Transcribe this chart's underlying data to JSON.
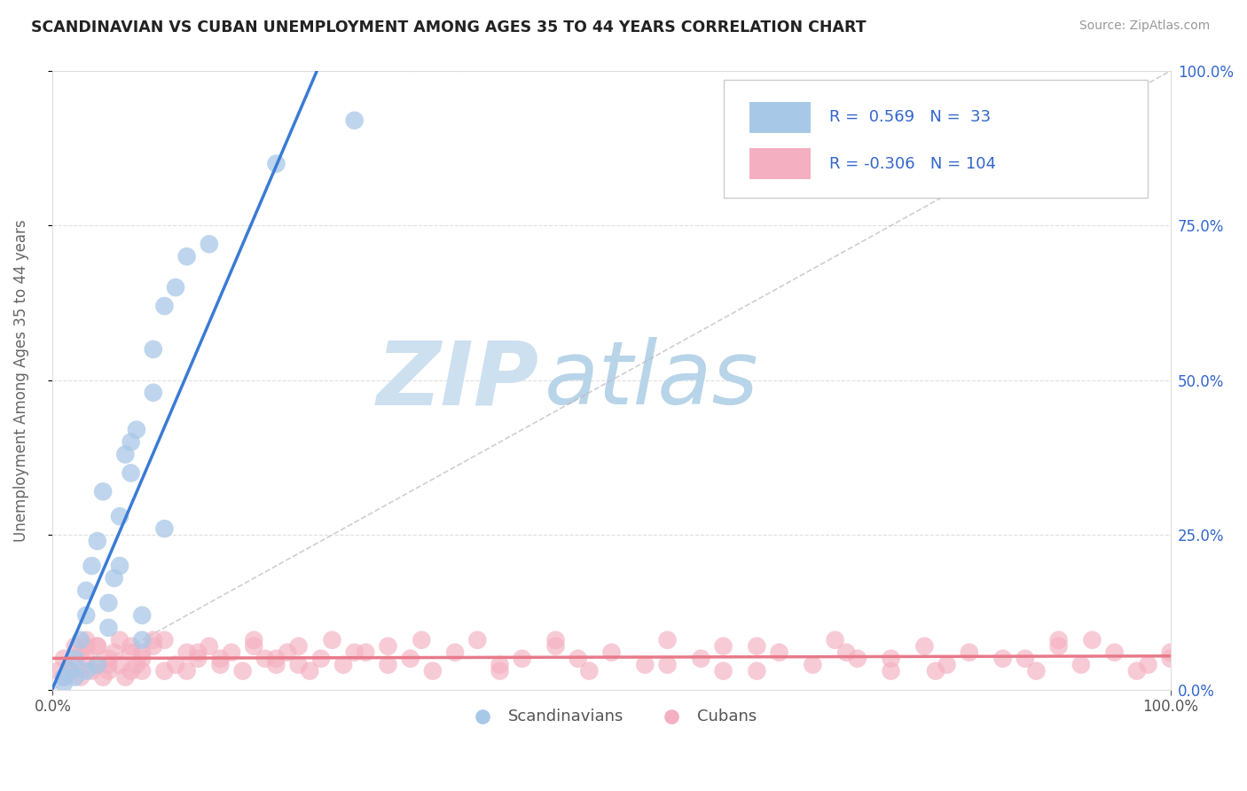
{
  "title": "SCANDINAVIAN VS CUBAN UNEMPLOYMENT AMONG AGES 35 TO 44 YEARS CORRELATION CHART",
  "source": "Source: ZipAtlas.com",
  "ylabel": "Unemployment Among Ages 35 to 44 years",
  "yticklabels": [
    "0.0%",
    "25.0%",
    "50.0%",
    "75.0%",
    "100.0%"
  ],
  "yticks": [
    0,
    25,
    50,
    75,
    100
  ],
  "xticklabels": [
    "0.0%",
    "100.0%"
  ],
  "xticks": [
    0,
    100
  ],
  "legend_label1": "Scandinavians",
  "legend_label2": "Cubans",
  "legend_r1": "0.569",
  "legend_n1": "33",
  "legend_r2": "-0.306",
  "legend_n2": "104",
  "blue_scatter_color": "#a8c8e8",
  "pink_scatter_color": "#f4b0c0",
  "blue_line_color": "#3a7bd5",
  "pink_line_color": "#e87a8a",
  "diagonal_color": "#bbbbbb",
  "grid_color": "#e0e0e0",
  "title_color": "#222222",
  "axis_label_color": "#666666",
  "tick_color": "#3366cc",
  "scandinavian_x": [
    1.0,
    1.5,
    2.0,
    2.5,
    3.0,
    3.0,
    3.5,
    4.0,
    4.5,
    5.0,
    5.5,
    6.0,
    6.5,
    7.0,
    7.5,
    8.0,
    9.0,
    10.0,
    11.0,
    12.0,
    14.0,
    1.0,
    2.0,
    3.0,
    4.0,
    5.0,
    6.0,
    7.0,
    8.0,
    9.0,
    10.0,
    20.0,
    27.0
  ],
  "scandinavian_y": [
    2.0,
    3.0,
    5.0,
    8.0,
    12.0,
    16.0,
    20.0,
    24.0,
    32.0,
    10.0,
    18.0,
    28.0,
    38.0,
    35.0,
    42.0,
    8.0,
    55.0,
    26.0,
    65.0,
    70.0,
    72.0,
    1.0,
    2.0,
    3.0,
    4.0,
    14.0,
    20.0,
    40.0,
    12.0,
    48.0,
    62.0,
    85.0,
    92.0
  ],
  "cuban_x": [
    0.5,
    1.0,
    1.0,
    1.5,
    2.0,
    2.0,
    2.5,
    2.5,
    3.0,
    3.0,
    3.5,
    4.0,
    4.0,
    4.5,
    5.0,
    5.0,
    5.5,
    6.0,
    6.0,
    6.5,
    7.0,
    7.0,
    7.5,
    8.0,
    8.0,
    9.0,
    10.0,
    10.0,
    11.0,
    12.0,
    13.0,
    14.0,
    15.0,
    16.0,
    17.0,
    18.0,
    19.0,
    20.0,
    21.0,
    22.0,
    23.0,
    24.0,
    25.0,
    26.0,
    28.0,
    30.0,
    32.0,
    34.0,
    36.0,
    38.0,
    40.0,
    42.0,
    45.0,
    48.0,
    50.0,
    53.0,
    55.0,
    58.0,
    60.0,
    63.0,
    65.0,
    68.0,
    70.0,
    72.0,
    75.0,
    78.0,
    80.0,
    82.0,
    85.0,
    88.0,
    90.0,
    92.0,
    95.0,
    97.0,
    100.0,
    3.0,
    5.0,
    7.0,
    9.0,
    12.0,
    15.0,
    18.0,
    22.0,
    27.0,
    33.0,
    40.0,
    47.0,
    55.0,
    63.0,
    71.0,
    79.0,
    87.0,
    93.0,
    98.0,
    4.0,
    8.0,
    13.0,
    20.0,
    30.0,
    45.0,
    60.0,
    75.0,
    90.0,
    100.0
  ],
  "cuban_y": [
    3.0,
    2.0,
    5.0,
    3.0,
    4.0,
    7.0,
    2.0,
    6.0,
    5.0,
    8.0,
    3.0,
    4.0,
    7.0,
    2.0,
    5.0,
    3.0,
    6.0,
    4.0,
    8.0,
    2.0,
    3.0,
    7.0,
    4.0,
    5.0,
    6.0,
    7.0,
    3.0,
    8.0,
    4.0,
    6.0,
    5.0,
    7.0,
    4.0,
    6.0,
    3.0,
    8.0,
    5.0,
    4.0,
    6.0,
    7.0,
    3.0,
    5.0,
    8.0,
    4.0,
    6.0,
    7.0,
    5.0,
    3.0,
    6.0,
    8.0,
    4.0,
    5.0,
    7.0,
    3.0,
    6.0,
    4.0,
    8.0,
    5.0,
    7.0,
    3.0,
    6.0,
    4.0,
    8.0,
    5.0,
    3.0,
    7.0,
    4.0,
    6.0,
    5.0,
    3.0,
    8.0,
    4.0,
    6.0,
    3.0,
    5.0,
    7.0,
    4.0,
    6.0,
    8.0,
    3.0,
    5.0,
    7.0,
    4.0,
    6.0,
    8.0,
    3.0,
    5.0,
    4.0,
    7.0,
    6.0,
    3.0,
    5.0,
    8.0,
    4.0,
    7.0,
    3.0,
    6.0,
    5.0,
    4.0,
    8.0,
    3.0,
    5.0,
    7.0,
    6.0
  ]
}
